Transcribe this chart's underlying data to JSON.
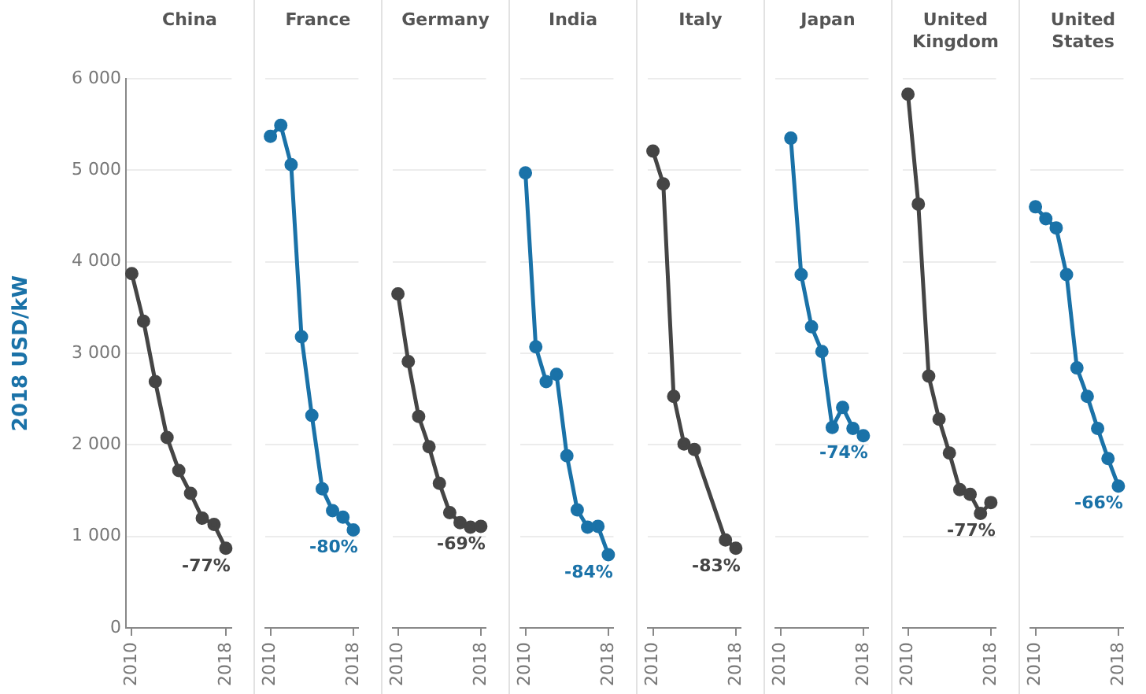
{
  "chart_data": [
    {
      "type": "line",
      "title": "China",
      "ylabel": "2018 USD/kW",
      "categories": [
        "2010",
        null,
        null,
        null,
        null,
        null,
        null,
        null,
        "2018"
      ],
      "ylim": [
        0,
        6000
      ],
      "yticks": [
        0,
        {
          "value": 1000,
          "label": "1 000"
        },
        {
          "value": 2000,
          "label": "2 000"
        },
        {
          "value": 3000,
          "label": "3 000"
        },
        {
          "value": 4000,
          "label": "4 000"
        },
        {
          "value": 5000,
          "label": "5 000"
        },
        {
          "value": 6000,
          "label": "6 000"
        }
      ],
      "grid": "y",
      "marker": "circle",
      "line_style": "solid",
      "series": [
        {
          "color": "#454545",
          "values": [
            3870,
            3350,
            2690,
            2080,
            1720,
            1470,
            1200,
            1130,
            870
          ]
        }
      ],
      "annotations": [
        {
          "text": "-77%",
          "x": "2018",
          "y": 870
        }
      ]
    },
    {
      "type": "line",
      "title": "France",
      "categories": [
        "2010",
        null,
        null,
        null,
        null,
        null,
        null,
        null,
        "2018"
      ],
      "ylim": [
        0,
        6000
      ],
      "yticks": [
        0,
        1000,
        2000,
        3000,
        4000,
        5000,
        6000
      ],
      "tick_labels": "x",
      "grid": "y",
      "marker": "circle",
      "line_style": "solid",
      "series": [
        {
          "color": "#1a72a8",
          "values": [
            5370,
            5490,
            5060,
            3180,
            2320,
            1520,
            1280,
            1210,
            1070
          ]
        }
      ],
      "annotations": [
        {
          "text": "-80%",
          "x": "2018",
          "y": 1070
        }
      ]
    },
    {
      "type": "line",
      "title": "Germany",
      "categories": [
        "2010",
        null,
        null,
        null,
        null,
        null,
        null,
        null,
        "2018"
      ],
      "ylim": [
        0,
        6000
      ],
      "yticks": [
        0,
        1000,
        2000,
        3000,
        4000,
        5000,
        6000
      ],
      "tick_labels": "x",
      "grid": "y",
      "marker": "circle",
      "line_style": "solid",
      "series": [
        {
          "color": "#454545",
          "values": [
            3650,
            2910,
            2310,
            1980,
            1580,
            1260,
            1150,
            1100,
            1110
          ]
        }
      ],
      "annotations": [
        {
          "text": "-69%",
          "x": "2018",
          "y": 1110
        }
      ]
    },
    {
      "type": "line",
      "title": "India",
      "categories": [
        "2010",
        null,
        null,
        null,
        null,
        null,
        null,
        null,
        "2018"
      ],
      "ylim": [
        0,
        6000
      ],
      "yticks": [
        0,
        1000,
        2000,
        3000,
        4000,
        5000,
        6000
      ],
      "tick_labels": "x",
      "grid": "y",
      "marker": "circle",
      "line_style": "solid",
      "series": [
        {
          "color": "#1a72a8",
          "values": [
            4970,
            3070,
            2690,
            2770,
            1880,
            1290,
            1100,
            1110,
            800
          ]
        }
      ],
      "annotations": [
        {
          "text": "-84%",
          "x": "2018",
          "y": 800
        }
      ]
    },
    {
      "type": "line",
      "title": "Italy",
      "categories": [
        "2010",
        null,
        null,
        null,
        null,
        null,
        null,
        null,
        "2018"
      ],
      "ylim": [
        0,
        6000
      ],
      "yticks": [
        0,
        1000,
        2000,
        3000,
        4000,
        5000,
        6000
      ],
      "tick_labels": "x",
      "grid": "y",
      "marker": "circle",
      "line_style": "solid",
      "series": [
        {
          "color": "#454545",
          "values": [
            5210,
            4850,
            2530,
            2010,
            1950,
            null,
            null,
            960,
            870
          ]
        }
      ],
      "annotations": [
        {
          "text": "-83%",
          "x": "2018",
          "y": 870
        }
      ]
    },
    {
      "type": "line",
      "title": "Japan",
      "categories": [
        "2010",
        null,
        null,
        null,
        null,
        null,
        null,
        null,
        "2018"
      ],
      "ylim": [
        0,
        6000
      ],
      "yticks": [
        0,
        1000,
        2000,
        3000,
        4000,
        5000,
        6000
      ],
      "tick_labels": "x",
      "grid": "y",
      "marker": "circle",
      "line_style": "solid",
      "series": [
        {
          "color": "#1a72a8",
          "values": [
            null,
            5350,
            3860,
            3290,
            3020,
            2190,
            2410,
            2180,
            2100
          ]
        }
      ],
      "annotations": [
        {
          "text": "-74%",
          "x": "2018",
          "y": 2100
        }
      ]
    },
    {
      "type": "line",
      "title": "United Kingdom",
      "categories": [
        "2010",
        null,
        null,
        null,
        null,
        null,
        null,
        null,
        "2018"
      ],
      "ylim": [
        0,
        6000
      ],
      "yticks": [
        0,
        1000,
        2000,
        3000,
        4000,
        5000,
        6000
      ],
      "tick_labels": "x",
      "grid": "y",
      "marker": "circle",
      "line_style": "solid",
      "series": [
        {
          "color": "#454545",
          "values": [
            5830,
            4630,
            2750,
            2280,
            1910,
            1510,
            1460,
            1250,
            1370
          ]
        }
      ],
      "annotations": [
        {
          "text": "-77%",
          "x": "2018",
          "y": 1250
        }
      ]
    },
    {
      "type": "line",
      "title": "United States",
      "categories": [
        "2010",
        null,
        null,
        null,
        null,
        null,
        null,
        null,
        "2018"
      ],
      "ylim": [
        0,
        6000
      ],
      "yticks": [
        0,
        1000,
        2000,
        3000,
        4000,
        5000,
        6000
      ],
      "tick_labels": "x",
      "grid": "y",
      "marker": "circle",
      "line_style": "solid",
      "series": [
        {
          "color": "#1a72a8",
          "values": [
            4600,
            4470,
            4370,
            3860,
            2840,
            2530,
            2180,
            1850,
            1550
          ]
        }
      ],
      "annotations": [
        {
          "text": "-66%",
          "x": "2018",
          "y": 1550
        }
      ]
    }
  ]
}
